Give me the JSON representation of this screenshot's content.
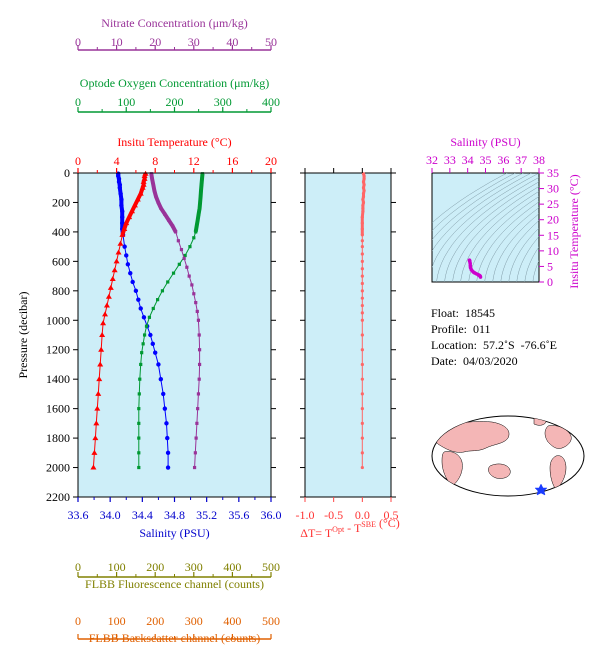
{
  "chart_data": [
    {
      "type": "line",
      "ylabel": "Pressure (decibar)",
      "ylim": [
        2200,
        0
      ],
      "yticks": [
        0,
        200,
        400,
        600,
        800,
        1000,
        1200,
        1400,
        1600,
        1800,
        2000,
        2200
      ],
      "axes": [
        {
          "label": "Salinity (PSU)",
          "range": [
            33.6,
            36.0
          ],
          "ticks": [
            "33.6",
            "34.0",
            "34.4",
            "34.8",
            "35.2",
            "35.6",
            "36.0"
          ],
          "color": "#0000cc"
        },
        {
          "label": "Insitu Temperature (°C)",
          "range": [
            0,
            20
          ],
          "ticks": [
            "0",
            "4",
            "8",
            "12",
            "16",
            "20"
          ],
          "color": "#ff0000"
        },
        {
          "label": "Optode Oxygen Concentration (μm/kg)",
          "range": [
            0,
            400
          ],
          "ticks": [
            "0",
            "100",
            "200",
            "300",
            "400"
          ],
          "color": "#009933"
        },
        {
          "label": "Nitrate Concentration (μm/kg)",
          "range": [
            0,
            50
          ],
          "ticks": [
            "0",
            "10",
            "20",
            "30",
            "40",
            "50"
          ],
          "color": "#993399"
        },
        {
          "label": "FLBB Fluorescence channel (counts)",
          "range": [
            0,
            500
          ],
          "ticks": [
            "0",
            "100",
            "200",
            "300",
            "400",
            "500"
          ],
          "color": "#808000"
        },
        {
          "label": "FLBB Backscatter channel (counts)",
          "range": [
            0,
            500
          ],
          "ticks": [
            "0",
            "100",
            "200",
            "300",
            "400",
            "500"
          ],
          "color": "#e06000"
        }
      ],
      "series": [
        {
          "name": "Salinity",
          "color": "#0000ff",
          "points": [
            [
              34.1,
              5
            ],
            [
              34.1,
              20
            ],
            [
              34.11,
              40
            ],
            [
              34.11,
              60
            ],
            [
              34.12,
              80
            ],
            [
              34.12,
              100
            ],
            [
              34.13,
              140
            ],
            [
              34.14,
              180
            ],
            [
              34.14,
              220
            ],
            [
              34.15,
              260
            ],
            [
              34.15,
              300
            ],
            [
              34.15,
              340
            ],
            [
              34.15,
              380
            ],
            [
              34.16,
              420
            ],
            [
              34.18,
              500
            ],
            [
              34.2,
              560
            ],
            [
              34.22,
              620
            ],
            [
              34.25,
              680
            ],
            [
              34.28,
              740
            ],
            [
              34.32,
              800
            ],
            [
              34.35,
              860
            ],
            [
              34.38,
              920
            ],
            [
              34.42,
              980
            ],
            [
              34.46,
              1040
            ],
            [
              34.5,
              1100
            ],
            [
              34.53,
              1160
            ],
            [
              34.56,
              1220
            ],
            [
              34.6,
              1300
            ],
            [
              34.63,
              1400
            ],
            [
              34.66,
              1500
            ],
            [
              34.68,
              1600
            ],
            [
              34.7,
              1700
            ],
            [
              34.71,
              1800
            ],
            [
              34.72,
              1900
            ],
            [
              34.72,
              2000
            ]
          ]
        },
        {
          "name": "Insitu Temperature",
          "color": "#ff0000",
          "points": [
            [
              7.0,
              5
            ],
            [
              6.9,
              20
            ],
            [
              6.9,
              40
            ],
            [
              6.8,
              60
            ],
            [
              6.8,
              80
            ],
            [
              6.7,
              100
            ],
            [
              6.5,
              140
            ],
            [
              6.2,
              180
            ],
            [
              5.9,
              220
            ],
            [
              5.6,
              260
            ],
            [
              5.3,
              300
            ],
            [
              5.0,
              340
            ],
            [
              4.8,
              380
            ],
            [
              4.6,
              420
            ],
            [
              4.4,
              480
            ],
            [
              4.2,
              540
            ],
            [
              4.0,
              600
            ],
            [
              3.8,
              660
            ],
            [
              3.6,
              720
            ],
            [
              3.4,
              780
            ],
            [
              3.2,
              840
            ],
            [
              3.0,
              900
            ],
            [
              2.8,
              960
            ],
            [
              2.6,
              1020
            ],
            [
              2.5,
              1100
            ],
            [
              2.4,
              1200
            ],
            [
              2.3,
              1300
            ],
            [
              2.2,
              1400
            ],
            [
              2.1,
              1500
            ],
            [
              2.0,
              1600
            ],
            [
              1.9,
              1700
            ],
            [
              1.8,
              1800
            ],
            [
              1.7,
              1900
            ],
            [
              1.6,
              2000
            ]
          ]
        },
        {
          "name": "Optode Oxygen Concentration",
          "color": "#009933",
          "points": [
            [
              258,
              5
            ],
            [
              257,
              40
            ],
            [
              256,
              80
            ],
            [
              255,
              120
            ],
            [
              254,
              160
            ],
            [
              253,
              200
            ],
            [
              252,
              240
            ],
            [
              250,
              280
            ],
            [
              248,
              320
            ],
            [
              246,
              360
            ],
            [
              244,
              400
            ],
            [
              240,
              440
            ],
            [
              232,
              500
            ],
            [
              222,
              560
            ],
            [
              210,
              620
            ],
            [
              198,
              680
            ],
            [
              186,
              740
            ],
            [
              175,
              800
            ],
            [
              165,
              860
            ],
            [
              156,
              920
            ],
            [
              148,
              980
            ],
            [
              142,
              1040
            ],
            [
              138,
              1100
            ],
            [
              135,
              1160
            ],
            [
              132,
              1220
            ],
            [
              130,
              1300
            ],
            [
              128,
              1400
            ],
            [
              127,
              1500
            ],
            [
              126,
              1600
            ],
            [
              126,
              1700
            ],
            [
              126,
              1800
            ],
            [
              126,
              1900
            ],
            [
              126,
              2000
            ]
          ]
        },
        {
          "name": "Nitrate Concentration",
          "color": "#993399",
          "points": [
            [
              19.0,
              5
            ],
            [
              19.2,
              40
            ],
            [
              19.5,
              80
            ],
            [
              19.8,
              120
            ],
            [
              20.2,
              160
            ],
            [
              20.8,
              200
            ],
            [
              21.5,
              240
            ],
            [
              22.5,
              280
            ],
            [
              23.5,
              320
            ],
            [
              24.5,
              360
            ],
            [
              25.3,
              400
            ],
            [
              26.0,
              460
            ],
            [
              26.8,
              520
            ],
            [
              27.5,
              580
            ],
            [
              28.2,
              640
            ],
            [
              28.8,
              700
            ],
            [
              29.5,
              760
            ],
            [
              30.0,
              820
            ],
            [
              30.5,
              880
            ],
            [
              30.9,
              940
            ],
            [
              31.2,
              1000
            ],
            [
              31.4,
              1100
            ],
            [
              31.5,
              1200
            ],
            [
              31.5,
              1300
            ],
            [
              31.4,
              1400
            ],
            [
              31.2,
              1500
            ],
            [
              31.0,
              1600
            ],
            [
              30.8,
              1700
            ],
            [
              30.6,
              1800
            ],
            [
              30.4,
              1900
            ],
            [
              30.2,
              2000
            ]
          ]
        }
      ]
    },
    {
      "type": "line",
      "xlabel": "ΔT= T",
      "xlabel_sup1": "Opt",
      "xlabel_mid": " - T",
      "xlabel_sup2": "SBE",
      "xlabel_unit": " (°C)",
      "xlim": [
        -1.0,
        0.5
      ],
      "xticks": [
        "-1.0",
        "-0.5",
        "0.0",
        "0.5"
      ],
      "ylim": [
        2200,
        0
      ],
      "series": [
        {
          "color": "#ff6666",
          "points": [
            [
              0.02,
              5
            ],
            [
              0.03,
              20
            ],
            [
              0.03,
              40
            ],
            [
              0.02,
              60
            ],
            [
              0.03,
              80
            ],
            [
              0.02,
              100
            ],
            [
              0.03,
              120
            ],
            [
              0.02,
              140
            ],
            [
              0.02,
              160
            ],
            [
              0.01,
              180
            ],
            [
              0.02,
              200
            ],
            [
              0.01,
              220
            ],
            [
              0.01,
              240
            ],
            [
              0.01,
              260
            ],
            [
              0.0,
              300
            ],
            [
              0.0,
              340
            ],
            [
              0.0,
              380
            ],
            [
              0.0,
              420
            ],
            [
              0.0,
              460
            ],
            [
              0.0,
              500
            ],
            [
              0.0,
              550
            ],
            [
              0.0,
              600
            ],
            [
              0.0,
              650
            ],
            [
              0.0,
              700
            ],
            [
              0.0,
              750
            ],
            [
              0.0,
              800
            ],
            [
              0.0,
              850
            ],
            [
              0.0,
              900
            ],
            [
              0.0,
              950
            ],
            [
              0.0,
              1000
            ],
            [
              0.0,
              1100
            ],
            [
              0.0,
              1200
            ],
            [
              0.0,
              1300
            ],
            [
              0.0,
              1400
            ],
            [
              0.0,
              1500
            ],
            [
              0.0,
              1600
            ],
            [
              0.0,
              1700
            ],
            [
              0.0,
              1800
            ],
            [
              0.0,
              1900
            ],
            [
              0.0,
              2000
            ]
          ]
        }
      ]
    },
    {
      "type": "scatter",
      "title": "Salinity (PSU)",
      "ylabel": "Insitu Temperature (°C)",
      "xlim": [
        32,
        38
      ],
      "ylim": [
        0,
        35
      ],
      "xticks": [
        "32",
        "33",
        "34",
        "35",
        "36",
        "37",
        "38"
      ],
      "yticks": [
        "0",
        "5",
        "10",
        "15",
        "20",
        "25",
        "30",
        "35"
      ],
      "color": "#cc00cc",
      "series": [
        {
          "points": [
            [
              34.1,
              7.0
            ],
            [
              34.11,
              6.8
            ],
            [
              34.12,
              6.6
            ],
            [
              34.14,
              6.0
            ],
            [
              34.15,
              5.2
            ],
            [
              34.16,
              4.6
            ],
            [
              34.2,
              4.0
            ],
            [
              34.25,
              3.6
            ],
            [
              34.32,
              3.2
            ],
            [
              34.4,
              2.9
            ],
            [
              34.5,
              2.6
            ],
            [
              34.6,
              2.3
            ],
            [
              34.66,
              2.1
            ],
            [
              34.7,
              1.9
            ],
            [
              34.72,
              1.6
            ]
          ]
        }
      ]
    }
  ],
  "info": {
    "float_label": "Float:",
    "float_value": "18545",
    "profile_label": "Profile:",
    "profile_value": "011",
    "location_label": "Location:",
    "location_value": "57.2˚S  -76.6˚E",
    "date_label": "Date:",
    "date_value": "04/03/2020"
  }
}
